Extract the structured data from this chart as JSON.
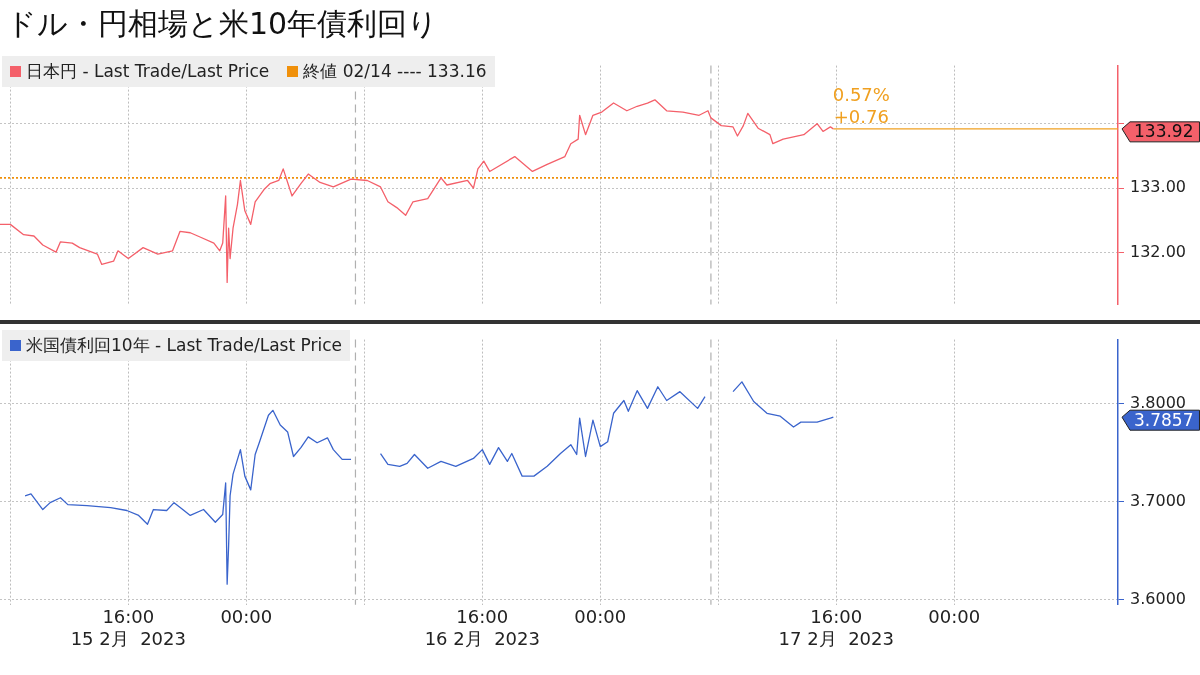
{
  "chart_data": [
    {
      "type": "line",
      "title": "ドル・円相場と米10年債利回り",
      "x": [
        "2023-02-15T07:18",
        "2023-02-15T08:00",
        "2023-02-15T08:54",
        "2023-02-15T09:36",
        "2023-02-15T10:12",
        "2023-02-15T11:06",
        "2023-02-15T11:24",
        "2023-02-15T12:12",
        "2023-02-15T12:42",
        "2023-02-15T13:54",
        "2023-02-15T14:12",
        "2023-02-15T15:00",
        "2023-02-15T15:18",
        "2023-02-15T16:00",
        "2023-02-15T17:00",
        "2023-02-15T18:00",
        "2023-02-15T19:00",
        "2023-02-15T19:30",
        "2023-02-15T20:12",
        "2023-02-15T20:54",
        "2023-02-15T21:48",
        "2023-02-15T22:12",
        "2023-02-15T22:24",
        "2023-02-15T22:36",
        "2023-02-15T22:42",
        "2023-02-15T22:48",
        "2023-02-15T22:54",
        "2023-02-15T23:06",
        "2023-02-15T23:24",
        "2023-02-15T23:36",
        "2023-02-15T23:54",
        "2023-02-16T00:18",
        "2023-02-16T00:36",
        "2023-02-16T01:12",
        "2023-02-16T01:36",
        "2023-02-16T02:12",
        "2023-02-16T02:30",
        "2023-02-16T03:06",
        "2023-02-16T03:42",
        "2023-02-16T04:12",
        "2023-02-16T05:00",
        "2023-02-16T05:54",
        "2023-02-16T07:06",
        "2023-02-16T08:12",
        "2023-02-16T09:06",
        "2023-02-16T09:36",
        "2023-02-16T10:12",
        "2023-02-16T10:48",
        "2023-02-16T11:18",
        "2023-02-16T12:18",
        "2023-02-16T13:12",
        "2023-02-16T13:36",
        "2023-02-16T15:00",
        "2023-02-16T15:24",
        "2023-02-16T15:42",
        "2023-02-16T16:06",
        "2023-02-16T16:30",
        "2023-02-16T18:12",
        "2023-02-16T19:24",
        "2023-02-16T20:24",
        "2023-02-16T21:36",
        "2023-02-16T22:00",
        "2023-02-16T22:30",
        "2023-02-16T22:36",
        "2023-02-16T23:00",
        "2023-02-16T23:30",
        "2023-02-17T00:06",
        "2023-02-17T00:54",
        "2023-02-17T01:48",
        "2023-02-17T02:30",
        "2023-02-17T03:12",
        "2023-02-17T03:42",
        "2023-02-17T04:30",
        "2023-02-17T05:36",
        "2023-02-17T06:42",
        "2023-02-17T07:18",
        "2023-02-17T07:30",
        "2023-02-17T08:12",
        "2023-02-17T09:00",
        "2023-02-17T09:18",
        "2023-02-17T09:42",
        "2023-02-17T10:00",
        "2023-02-17T10:42",
        "2023-02-17T11:30",
        "2023-02-17T11:42",
        "2023-02-17T12:24",
        "2023-02-17T13:48",
        "2023-02-17T14:42",
        "2023-02-17T15:06",
        "2023-02-17T15:36",
        "2023-02-17T15:48"
      ],
      "series": [
        {
          "name": "日本円 - Last Trade/Last Price",
          "color": "#f4606a",
          "values": [
            132.44,
            132.44,
            132.28,
            132.26,
            132.12,
            132.01,
            132.17,
            132.15,
            132.08,
            131.98,
            131.82,
            131.87,
            132.03,
            131.91,
            132.08,
            131.98,
            132.03,
            132.33,
            132.31,
            132.24,
            132.15,
            132.03,
            132.15,
            132.88,
            131.54,
            132.38,
            131.91,
            132.38,
            132.75,
            133.12,
            132.65,
            132.44,
            132.79,
            132.98,
            133.07,
            133.12,
            133.3,
            132.88,
            133.07,
            133.22,
            133.09,
            133.02,
            133.14,
            133.12,
            133.02,
            132.79,
            132.7,
            132.58,
            132.79,
            132.84,
            133.16,
            133.05,
            133.12,
            133.0,
            133.3,
            133.42,
            133.26,
            133.49,
            133.26,
            133.37,
            133.49,
            133.69,
            133.76,
            134.13,
            133.83,
            134.13,
            134.18,
            134.32,
            134.2,
            134.27,
            134.32,
            134.37,
            134.2,
            134.18,
            134.13,
            134.2,
            134.09,
            133.97,
            133.95,
            133.81,
            133.97,
            134.16,
            133.93,
            133.83,
            133.69,
            133.76,
            133.83,
            134.0,
            133.88,
            133.95,
            133.92
          ]
        }
      ],
      "xlim": [
        "2023-02-15T07:18",
        "2023-02-18T11:06"
      ],
      "xticks": [
        {
          "value": "2023-02-15T08:00",
          "label": null
        },
        {
          "value": "2023-02-15T16:00",
          "label": null
        },
        {
          "value": "2023-02-16T00:00",
          "label": null
        },
        {
          "value": "2023-02-16T08:00",
          "label": null
        },
        {
          "value": "2023-02-16T16:00",
          "label": null
        },
        {
          "value": "2023-02-17T00:00",
          "label": null
        },
        {
          "value": "2023-02-17T08:00",
          "label": null
        },
        {
          "value": "2023-02-17T16:00",
          "label": null
        },
        {
          "value": "2023-02-18T00:00",
          "label": null
        }
      ],
      "ylim": [
        131.2,
        134.9
      ],
      "yticks": [
        {
          "value": 132,
          "label": "132.00"
        },
        {
          "value": 133,
          "label": "133.00"
        },
        {
          "value": 134,
          "label": null
        }
      ],
      "tick_labels": "y",
      "grid": true,
      "legend": "top left",
      "ref_lines": [
        {
          "axis": "y",
          "value": 133.16,
          "label": "終値 02/14 ---- 133.16",
          "color": "#f0900a",
          "line_style": "dotted"
        },
        {
          "axis": "y",
          "value": 133.92,
          "color": "#f0a020",
          "line_style": "solid"
        },
        {
          "axis": "x",
          "value": "2023-02-16T07:24",
          "color": "#b0b0b0",
          "line_style": "dashed"
        },
        {
          "axis": "x",
          "value": "2023-02-17T07:30",
          "color": "#b0b0b0",
          "line_style": "dashed"
        }
      ],
      "annotations": [
        {
          "text": "0.57%",
          "x": "2023-02-17T15:48",
          "y": 133.92
        },
        {
          "text": "+0.76",
          "x": "2023-02-17T15:48",
          "y": 133.92
        },
        "133.92"
      ]
    },
    {
      "type": "line",
      "x": [
        "2023-02-15T09:00",
        "2023-02-15T09:24",
        "2023-02-15T10:12",
        "2023-02-15T10:42",
        "2023-02-15T11:24",
        "2023-02-15T11:54",
        "2023-02-15T13:12",
        "2023-02-15T14:48",
        "2023-02-15T15:54",
        "2023-02-15T16:42",
        "2023-02-15T17:18",
        "2023-02-15T17:42",
        "2023-02-15T18:36",
        "2023-02-15T19:06",
        "2023-02-15T20:12",
        "2023-02-15T21:06",
        "2023-02-15T21:54",
        "2023-02-15T22:24",
        "2023-02-15T22:36",
        "2023-02-15T22:42",
        "2023-02-15T22:48",
        "2023-02-15T22:54",
        "2023-02-15T23:06",
        "2023-02-15T23:36",
        "2023-02-15T23:54",
        "2023-02-16T00:18",
        "2023-02-16T00:36",
        "2023-02-16T00:54",
        "2023-02-16T01:30",
        "2023-02-16T01:48",
        "2023-02-16T02:18",
        "2023-02-16T02:48",
        "2023-02-16T03:12",
        "2023-02-16T03:42",
        "2023-02-16T04:12",
        "2023-02-16T04:48",
        "2023-02-16T05:30",
        "2023-02-16T05:54",
        "2023-02-16T06:30",
        "2023-02-16T07:06",
        "2023-02-16T07:24",
        "2023-02-16T09:06",
        "2023-02-16T09:36",
        "2023-02-16T10:24",
        "2023-02-16T10:54",
        "2023-02-16T11:24",
        "2023-02-16T12:18",
        "2023-02-16T13:12",
        "2023-02-16T14:12",
        "2023-02-16T15:24",
        "2023-02-16T16:00",
        "2023-02-16T16:30",
        "2023-02-16T17:06",
        "2023-02-16T17:42",
        "2023-02-16T18:00",
        "2023-02-16T18:42",
        "2023-02-16T19:30",
        "2023-02-16T20:24",
        "2023-02-16T21:18",
        "2023-02-16T22:00",
        "2023-02-16T22:24",
        "2023-02-16T22:36",
        "2023-02-16T23:00",
        "2023-02-16T23:30",
        "2023-02-17T00:00",
        "2023-02-17T00:30",
        "2023-02-17T00:54",
        "2023-02-17T01:36",
        "2023-02-17T01:54",
        "2023-02-17T02:30",
        "2023-02-17T03:12",
        "2023-02-17T03:54",
        "2023-02-17T04:30",
        "2023-02-17T05:24",
        "2023-02-17T06:36",
        "2023-02-17T07:06",
        "2023-02-17T07:30",
        "2023-02-17T09:00",
        "2023-02-17T09:36",
        "2023-02-17T10:24",
        "2023-02-17T11:18",
        "2023-02-17T12:12",
        "2023-02-17T13:06",
        "2023-02-17T13:36",
        "2023-02-17T14:42",
        "2023-02-17T15:36",
        "2023-02-17T15:48"
      ],
      "series": [
        {
          "name": "米国債利回10年 - Last Trade/Last Price",
          "color": "#3a64cc",
          "values": [
            3.706,
            3.708,
            3.692,
            3.699,
            3.704,
            3.697,
            3.696,
            3.694,
            3.691,
            3.686,
            3.677,
            3.692,
            3.691,
            3.699,
            3.686,
            3.692,
            3.679,
            3.687,
            3.719,
            3.616,
            3.655,
            3.706,
            3.728,
            3.753,
            3.726,
            3.712,
            3.748,
            3.761,
            3.788,
            3.793,
            3.778,
            3.771,
            3.746,
            3.755,
            3.766,
            3.76,
            3.765,
            3.753,
            3.743,
            3.743,
            null,
            3.749,
            3.738,
            3.736,
            3.739,
            3.748,
            3.734,
            3.741,
            3.736,
            3.744,
            3.753,
            3.738,
            3.755,
            3.741,
            3.749,
            3.726,
            3.726,
            3.736,
            3.749,
            3.758,
            3.748,
            3.785,
            3.746,
            3.783,
            3.756,
            3.761,
            3.79,
            3.803,
            3.792,
            3.813,
            3.795,
            3.817,
            3.803,
            3.812,
            3.795,
            3.807,
            null,
            3.812,
            3.822,
            3.802,
            3.79,
            3.787,
            3.776,
            3.781,
            3.781,
            3.785,
            3.786
          ]
        }
      ],
      "xlim": [
        "2023-02-15T07:18",
        "2023-02-18T11:06"
      ],
      "xticks": [
        {
          "value": "2023-02-15T08:00",
          "label": null
        },
        {
          "value": "2023-02-15T16:00",
          "label": "16:00\n15 2月  2023"
        },
        {
          "value": "2023-02-16T00:00",
          "label": "00:00"
        },
        {
          "value": "2023-02-16T08:00",
          "label": null
        },
        {
          "value": "2023-02-16T16:00",
          "label": "16:00\n16 2月  2023"
        },
        {
          "value": "2023-02-17T00:00",
          "label": "00:00"
        },
        {
          "value": "2023-02-17T08:00",
          "label": null
        },
        {
          "value": "2023-02-17T16:00",
          "label": "16:00\n17 2月  2023"
        },
        {
          "value": "2023-02-18T00:00",
          "label": "00:00"
        }
      ],
      "ylim": [
        3.595,
        3.865
      ],
      "yticks": [
        {
          "value": 3.6,
          "label": "3.6000"
        },
        {
          "value": 3.7,
          "label": "3.7000"
        },
        {
          "value": 3.8,
          "label": "3.8000"
        }
      ],
      "grid": true,
      "legend": "top left",
      "ref_lines": [
        {
          "axis": "x",
          "value": "2023-02-16T07:24",
          "color": "#b0b0b0",
          "line_style": "dashed"
        },
        {
          "axis": "x",
          "value": "2023-02-17T07:30",
          "color": "#b0b0b0",
          "line_style": "dashed"
        }
      ],
      "annotations": [
        "3.7857"
      ]
    }
  ]
}
